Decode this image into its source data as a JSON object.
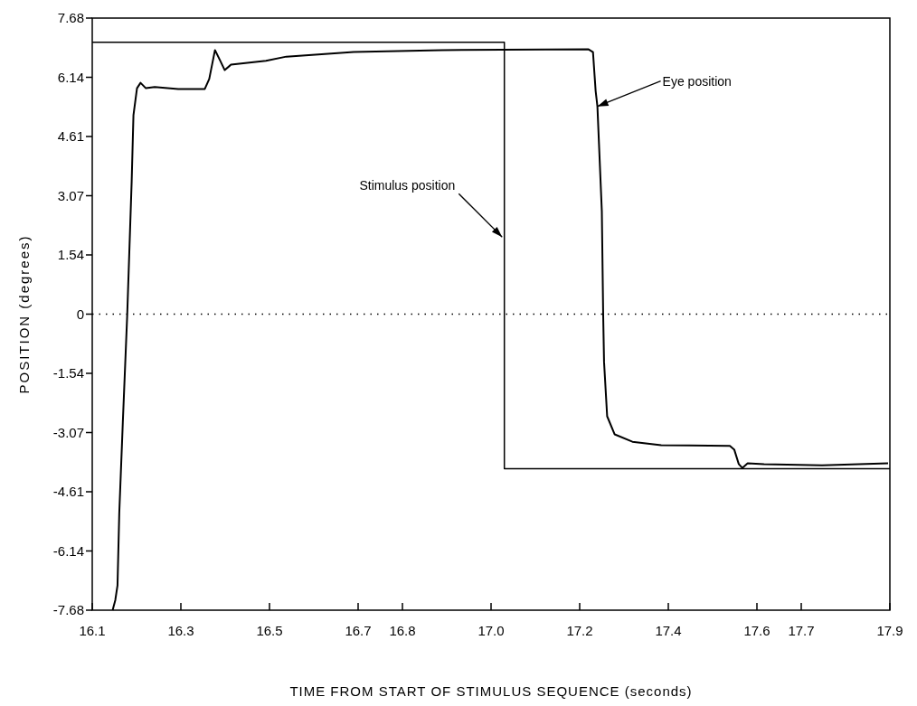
{
  "chart_data": {
    "type": "line",
    "xlabel": "TIME FROM START OF STIMULUS SEQUENCE (seconds)",
    "ylabel": "POSITION (degrees)",
    "xlim": [
      16.1,
      17.9
    ],
    "xticks": [
      16.1,
      16.3,
      16.5,
      16.7,
      16.8,
      {
        "value": 17,
        "label": "17.0"
      },
      17.2,
      17.4,
      17.6,
      17.7,
      17.9
    ],
    "ylim": [
      -7.68,
      7.68
    ],
    "yticks": [
      {
        "value": -7.68,
        "label": "-7.68"
      },
      {
        "value": -6.144,
        "label": "-6.14"
      },
      {
        "value": -4.608,
        "label": "-4.61"
      },
      {
        "value": -3.072,
        "label": "-3.07"
      },
      {
        "value": -1.536,
        "label": "-1.54"
      },
      0,
      {
        "value": 1.536,
        "label": "1.54"
      },
      {
        "value": 3.072,
        "label": "3.07"
      },
      {
        "value": 4.608,
        "label": "4.61"
      },
      {
        "value": 6.144,
        "label": "6.14"
      },
      {
        "value": 7.68,
        "label": "7.68"
      }
    ],
    "grid": false,
    "marker": "none",
    "ref_lines": [
      {
        "axis": "y",
        "value": 0,
        "line_style": "dotted",
        "color": "#000000"
      }
    ],
    "series": [
      {
        "color": "#000000",
        "x": [
          16.1,
          17.03,
          17.03,
          17.9
        ],
        "values": [
          7.05,
          7.05,
          -4.01,
          -4.01
        ]
      },
      {
        "color": "#000000",
        "x": [
          16.146,
          16.152,
          16.157,
          16.161,
          16.169,
          16.179,
          16.189,
          16.193,
          16.201,
          16.209,
          16.221,
          16.241,
          16.294,
          16.354,
          16.364,
          16.377,
          16.389,
          16.399,
          16.413,
          16.492,
          16.538,
          16.69,
          16.889,
          17.22,
          17.23,
          17.236,
          17.24,
          17.25,
          17.253,
          17.255,
          17.262,
          17.279,
          17.319,
          17.384,
          17.539,
          17.549,
          17.559,
          17.567,
          17.579,
          17.616,
          17.747,
          17.896
        ],
        "values": [
          -7.68,
          -7.42,
          -7.04,
          -5.16,
          -2.81,
          0,
          3.45,
          5.16,
          5.86,
          6.0,
          5.86,
          5.89,
          5.84,
          5.84,
          6.1,
          6.85,
          6.57,
          6.33,
          6.47,
          6.57,
          6.68,
          6.8,
          6.85,
          6.87,
          6.8,
          5.79,
          5.39,
          2.67,
          0,
          -1.24,
          -2.65,
          -3.12,
          -3.31,
          -3.4,
          -3.42,
          -3.52,
          -3.89,
          -3.99,
          -3.87,
          -3.89,
          -3.92,
          -3.87
        ]
      }
    ],
    "annotations": [
      {
        "text": "Eye position",
        "x": 17.24,
        "y": 5.39
      },
      {
        "text": "Stimulus position",
        "x": 17.025,
        "y": 2.0
      }
    ]
  }
}
